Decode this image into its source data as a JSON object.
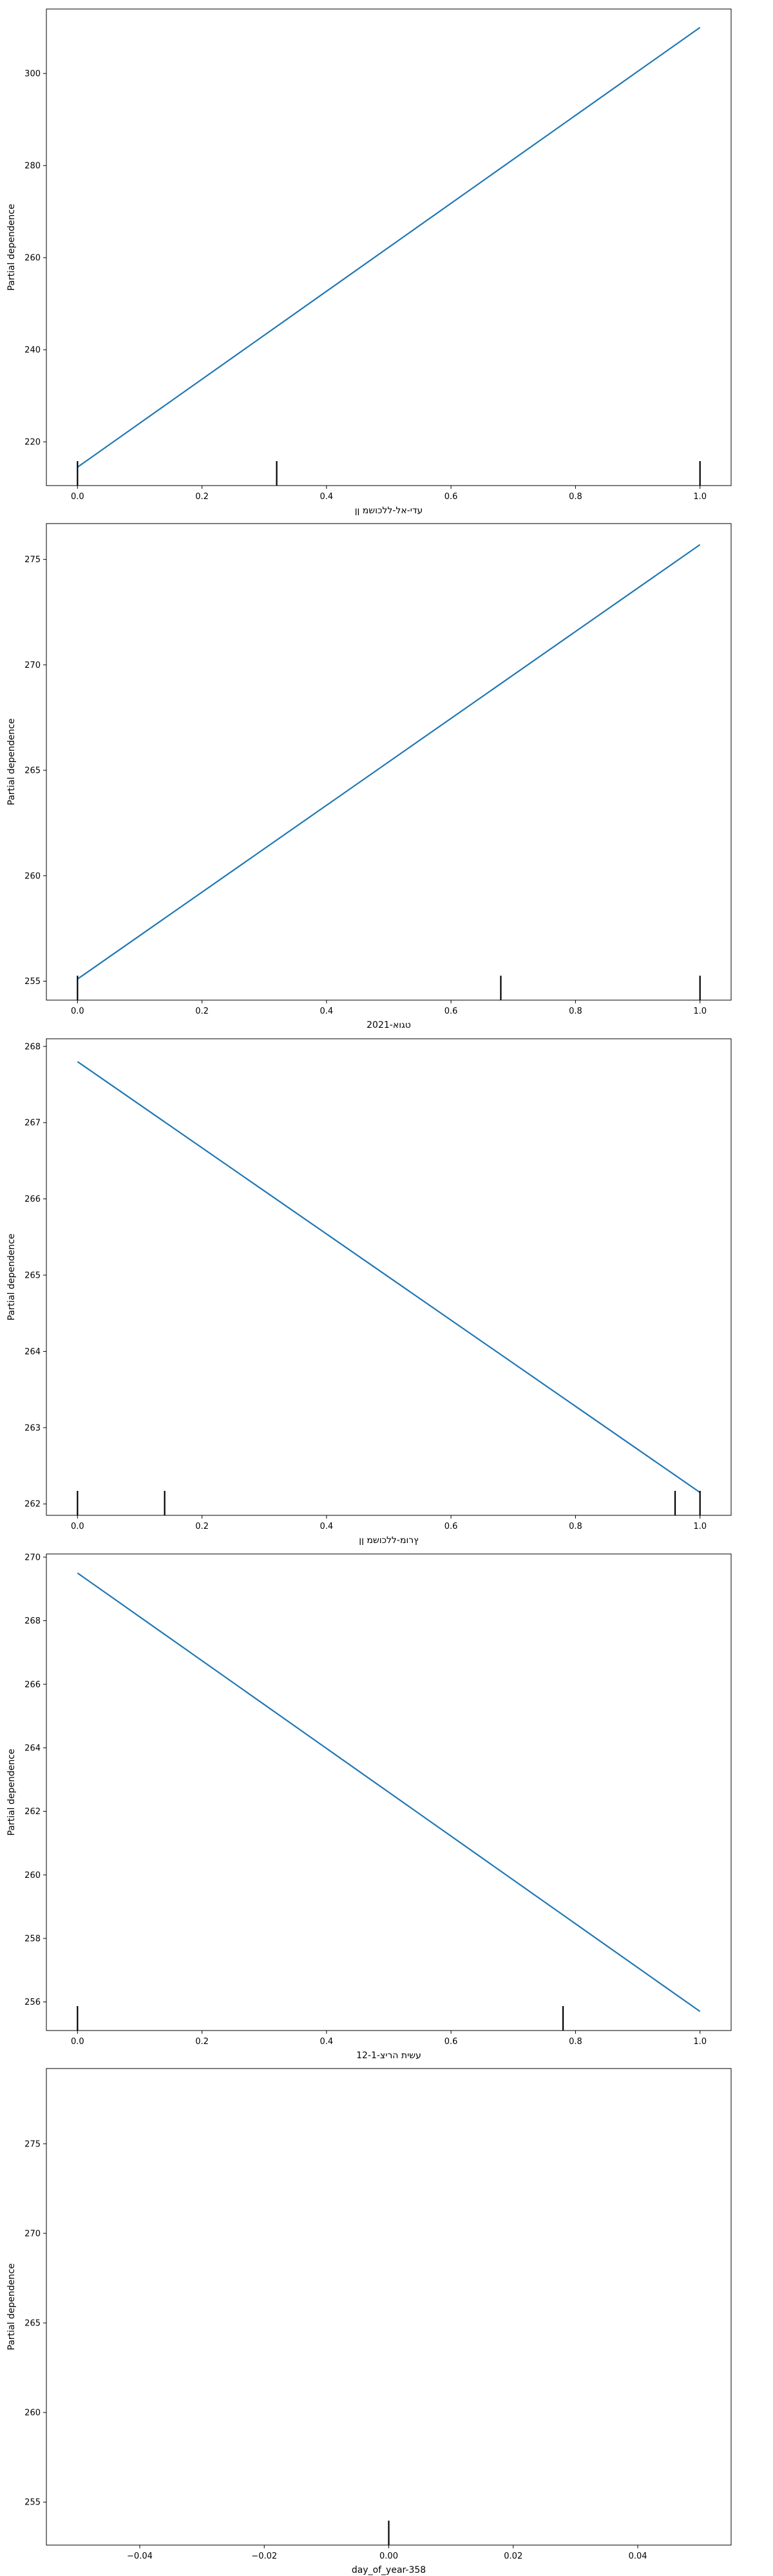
{
  "chart_data": [
    {
      "type": "line",
      "xlabel": "עדי-אל-ללכושמ ןן",
      "ylabel": "Partial dependence",
      "xlim": [
        -0.05,
        1.05
      ],
      "ylim": [
        210.5,
        314
      ],
      "xticks": [
        "0.0",
        "0.2",
        "0.4",
        "0.6",
        "0.8",
        "1.0"
      ],
      "xtick_values": [
        0,
        0.2,
        0.4,
        0.6,
        0.8,
        1.0
      ],
      "yticks": [
        "220",
        "240",
        "260",
        "280",
        "300"
      ],
      "ytick_values": [
        220,
        240,
        260,
        280,
        300
      ],
      "series": [
        {
          "x": [
            0,
            1
          ],
          "y": [
            214.5,
            310
          ],
          "color": "#1f77b4"
        }
      ],
      "rug": [
        0,
        0.32,
        1.0
      ]
    },
    {
      "type": "line",
      "xlabel": "טגוא-2021",
      "ylabel": "Partial dependence",
      "xlim": [
        -0.05,
        1.05
      ],
      "ylim": [
        254.1,
        276.7
      ],
      "xticks": [
        "0.0",
        "0.2",
        "0.4",
        "0.6",
        "0.8",
        "1.0"
      ],
      "xtick_values": [
        0,
        0.2,
        0.4,
        0.6,
        0.8,
        1.0
      ],
      "yticks": [
        "255",
        "260",
        "265",
        "270",
        "275"
      ],
      "ytick_values": [
        255,
        260,
        265,
        270,
        275
      ],
      "series": [
        {
          "x": [
            0,
            1
          ],
          "y": [
            255.1,
            275.7
          ],
          "color": "#1f77b4"
        }
      ],
      "rug": [
        0,
        0.68,
        1.0
      ]
    },
    {
      "type": "line",
      "xlabel": "ץרומ-ללכושמ ןן",
      "ylabel": "Partial dependence",
      "xlim": [
        -0.05,
        1.05
      ],
      "ylim": [
        261.85,
        268.1
      ],
      "xticks": [
        "0.0",
        "0.2",
        "0.4",
        "0.6",
        "0.8",
        "1.0"
      ],
      "xtick_values": [
        0,
        0.2,
        0.4,
        0.6,
        0.8,
        1.0
      ],
      "yticks": [
        "262",
        "263",
        "264",
        "265",
        "266",
        "267",
        "268"
      ],
      "ytick_values": [
        262,
        263,
        264,
        265,
        266,
        267,
        268
      ],
      "series": [
        {
          "x": [
            0,
            1
          ],
          "y": [
            267.8,
            262.15
          ],
          "color": "#1f77b4"
        }
      ],
      "rug": [
        0,
        0.14,
        0.96,
        1.0
      ]
    },
    {
      "type": "line",
      "xlabel": "עשית הריצ-12-1",
      "ylabel": "Partial dependence",
      "xlim": [
        -0.05,
        1.05
      ],
      "ylim": [
        255.1,
        270.1
      ],
      "xticks": [
        "0.0",
        "0.2",
        "0.4",
        "0.6",
        "0.8",
        "1.0"
      ],
      "xtick_values": [
        0,
        0.2,
        0.4,
        0.6,
        0.8,
        1.0
      ],
      "yticks": [
        "256",
        "258",
        "260",
        "262",
        "264",
        "266",
        "268",
        "270"
      ],
      "ytick_values": [
        256,
        258,
        260,
        262,
        264,
        266,
        268,
        270
      ],
      "series": [
        {
          "x": [
            0,
            1
          ],
          "y": [
            269.5,
            255.7
          ],
          "color": "#1f77b4"
        }
      ],
      "rug": [
        0,
        0.78
      ]
    },
    {
      "type": "line",
      "xlabel": "day_of_year-358",
      "ylabel": "Partial dependence",
      "xlim": [
        -0.055,
        0.055
      ],
      "ylim": [
        252.6,
        279.2
      ],
      "xticks": [
        "−0.04",
        "−0.02",
        "0.00",
        "0.02",
        "0.04"
      ],
      "xtick_values": [
        -0.04,
        -0.02,
        0,
        0.02,
        0.04
      ],
      "yticks": [
        "255",
        "260",
        "265",
        "270",
        "275"
      ],
      "ytick_values": [
        255,
        260,
        265,
        270,
        275
      ],
      "series": [
        {
          "x": [],
          "y": [],
          "color": "#1f77b4"
        }
      ],
      "rug": [
        0
      ]
    }
  ]
}
